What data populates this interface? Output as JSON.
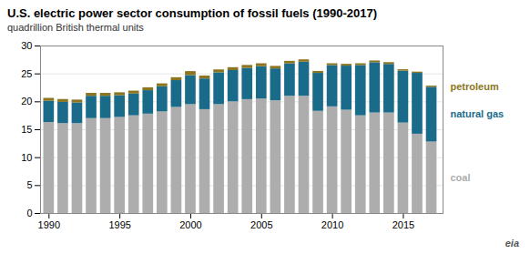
{
  "chart_data": {
    "type": "bar",
    "stacked": true,
    "title": "U.S. electric power sector consumption of fossil fuels (1990-2017)",
    "subtitle": "quadrillion British thermal units",
    "x": [
      1990,
      1991,
      1992,
      1993,
      1994,
      1995,
      1996,
      1997,
      1998,
      1999,
      2000,
      2001,
      2002,
      2003,
      2004,
      2005,
      2006,
      2007,
      2008,
      2009,
      2010,
      2011,
      2012,
      2013,
      2014,
      2015,
      2016,
      2017
    ],
    "series": [
      {
        "name": "coal",
        "color": "#adadad",
        "values": [
          16.3,
          16.1,
          16.1,
          17.0,
          17.0,
          17.2,
          17.5,
          17.8,
          18.2,
          19.0,
          19.5,
          18.6,
          19.5,
          20.0,
          20.4,
          20.5,
          20.2,
          21.0,
          21.0,
          18.3,
          19.1,
          18.5,
          17.5,
          18.0,
          18.0,
          16.2,
          14.2,
          12.8
        ]
      },
      {
        "name": "natural gas",
        "color": "#1a6b8a",
        "values": [
          3.8,
          3.8,
          3.7,
          4.0,
          4.0,
          3.9,
          3.9,
          4.2,
          4.5,
          4.8,
          5.2,
          5.5,
          5.7,
          5.6,
          5.6,
          5.8,
          5.7,
          5.8,
          6.1,
          6.8,
          7.4,
          7.9,
          9.0,
          9.0,
          8.7,
          9.3,
          10.9,
          9.8
        ]
      },
      {
        "name": "petroleum",
        "color": "#8b7520",
        "values": [
          0.52,
          0.52,
          0.52,
          0.52,
          0.52,
          0.52,
          0.52,
          0.52,
          0.52,
          0.52,
          0.72,
          0.52,
          0.52,
          0.52,
          0.52,
          0.52,
          0.45,
          0.45,
          0.42,
          0.35,
          0.32,
          0.32,
          0.32,
          0.32,
          0.32,
          0.25,
          0.22,
          0.22
        ]
      }
    ],
    "xlim": [
      1989.4,
      2017.8
    ],
    "xticks": [
      1990,
      1995,
      2000,
      2005,
      2010,
      2015
    ],
    "ylim": [
      0,
      30
    ],
    "yticks": [
      0,
      5,
      10,
      15,
      20,
      25,
      30
    ],
    "grid": true,
    "annotations": [
      "eia"
    ]
  }
}
